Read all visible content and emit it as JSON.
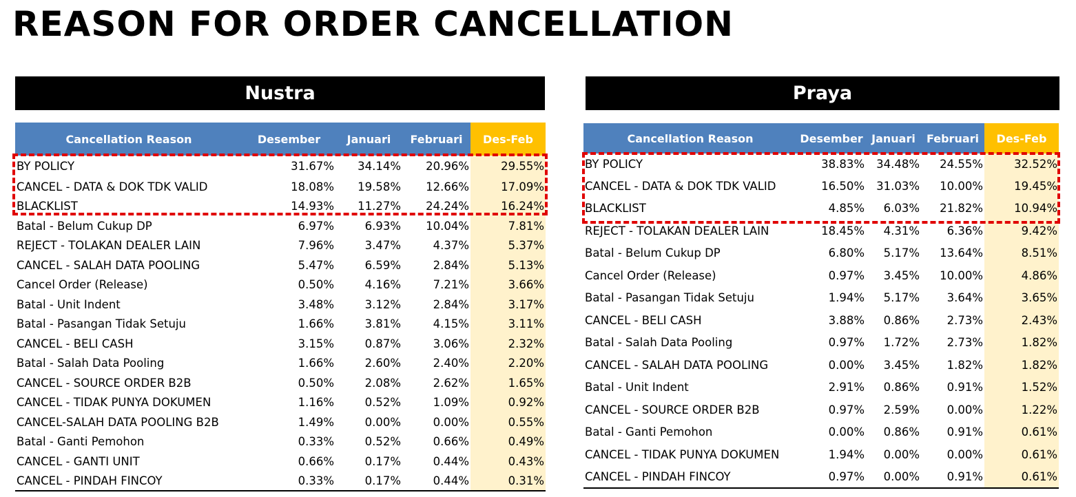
{
  "title": "REASON FOR ORDER CANCELLATION",
  "panels": [
    {
      "name": "Nustra",
      "headers": [
        "Cancellation Reason",
        "Desember",
        "Januari",
        "Februari",
        "Des-Feb"
      ],
      "rows": [
        [
          "BY POLICY",
          "31.67%",
          "34.14%",
          "20.96%",
          "29.55%"
        ],
        [
          "CANCEL - DATA & DOK TDK VALID",
          "18.08%",
          "19.58%",
          "12.66%",
          "17.09%"
        ],
        [
          "BLACKLIST",
          "14.93%",
          "11.27%",
          "24.24%",
          "16.24%"
        ],
        [
          "Batal - Belum Cukup DP",
          "6.97%",
          "6.93%",
          "10.04%",
          "7.81%"
        ],
        [
          "REJECT - TOLAKAN DEALER LAIN",
          "7.96%",
          "3.47%",
          "4.37%",
          "5.37%"
        ],
        [
          "CANCEL - SALAH DATA POOLING",
          "5.47%",
          "6.59%",
          "2.84%",
          "5.13%"
        ],
        [
          "Cancel Order (Release)",
          "0.50%",
          "4.16%",
          "7.21%",
          "3.66%"
        ],
        [
          "Batal - Unit Indent",
          "3.48%",
          "3.12%",
          "2.84%",
          "3.17%"
        ],
        [
          "Batal - Pasangan Tidak Setuju",
          "1.66%",
          "3.81%",
          "4.15%",
          "3.11%"
        ],
        [
          "CANCEL - BELI CASH",
          "3.15%",
          "0.87%",
          "3.06%",
          "2.32%"
        ],
        [
          "Batal - Salah Data Pooling",
          "1.66%",
          "2.60%",
          "2.40%",
          "2.20%"
        ],
        [
          "CANCEL - SOURCE ORDER B2B",
          "0.50%",
          "2.08%",
          "2.62%",
          "1.65%"
        ],
        [
          "CANCEL - TIDAK PUNYA DOKUMEN",
          "1.16%",
          "0.52%",
          "1.09%",
          "0.92%"
        ],
        [
          "CANCEL-SALAH DATA POOLING B2B",
          "1.49%",
          "0.00%",
          "0.00%",
          "0.55%"
        ],
        [
          "Batal - Ganti Pemohon",
          "0.33%",
          "0.52%",
          "0.66%",
          "0.49%"
        ],
        [
          "CANCEL - GANTI UNIT",
          "0.66%",
          "0.17%",
          "0.44%",
          "0.43%"
        ],
        [
          "CANCEL - PINDAH FINCOY",
          "0.33%",
          "0.17%",
          "0.44%",
          "0.31%"
        ]
      ]
    },
    {
      "name": "Praya",
      "headers": [
        "Cancellation Reason",
        "Desember",
        "Januari",
        "Februari",
        "Des-Feb"
      ],
      "rows": [
        [
          "BY POLICY",
          "38.83%",
          "34.48%",
          "24.55%",
          "32.52%"
        ],
        [
          "CANCEL - DATA & DOK TDK VALID",
          "16.50%",
          "31.03%",
          "10.00%",
          "19.45%"
        ],
        [
          "BLACKLIST",
          "4.85%",
          "6.03%",
          "21.82%",
          "10.94%"
        ],
        [
          "REJECT - TOLAKAN DEALER LAIN",
          "18.45%",
          "4.31%",
          "6.36%",
          "9.42%"
        ],
        [
          "Batal - Belum Cukup DP",
          "6.80%",
          "5.17%",
          "13.64%",
          "8.51%"
        ],
        [
          "Cancel Order (Release)",
          "0.97%",
          "3.45%",
          "10.00%",
          "4.86%"
        ],
        [
          "Batal - Pasangan Tidak Setuju",
          "1.94%",
          "5.17%",
          "3.64%",
          "3.65%"
        ],
        [
          "CANCEL - BELI CASH",
          "3.88%",
          "0.86%",
          "2.73%",
          "2.43%"
        ],
        [
          "Batal - Salah Data Pooling",
          "0.97%",
          "1.72%",
          "2.73%",
          "1.82%"
        ],
        [
          "CANCEL - SALAH DATA POOLING",
          "0.00%",
          "3.45%",
          "1.82%",
          "1.82%"
        ],
        [
          "Batal - Unit Indent",
          "2.91%",
          "0.86%",
          "0.91%",
          "1.52%"
        ],
        [
          "CANCEL - SOURCE ORDER B2B",
          "0.97%",
          "2.59%",
          "0.00%",
          "1.22%"
        ],
        [
          "Batal - Ganti Pemohon",
          "0.00%",
          "0.86%",
          "0.91%",
          "0.61%"
        ],
        [
          "CANCEL - TIDAK PUNYA DOKUMEN",
          "1.94%",
          "0.00%",
          "0.00%",
          "0.61%"
        ],
        [
          "CANCEL - PINDAH FINCOY",
          "0.97%",
          "0.00%",
          "0.91%",
          "0.61%"
        ]
      ]
    }
  ],
  "colors": {
    "header_blue": "#4f81bd",
    "header_highlight": "#ffc000",
    "column_highlight": "#fff2cc",
    "dashed_box": "#e00000"
  }
}
